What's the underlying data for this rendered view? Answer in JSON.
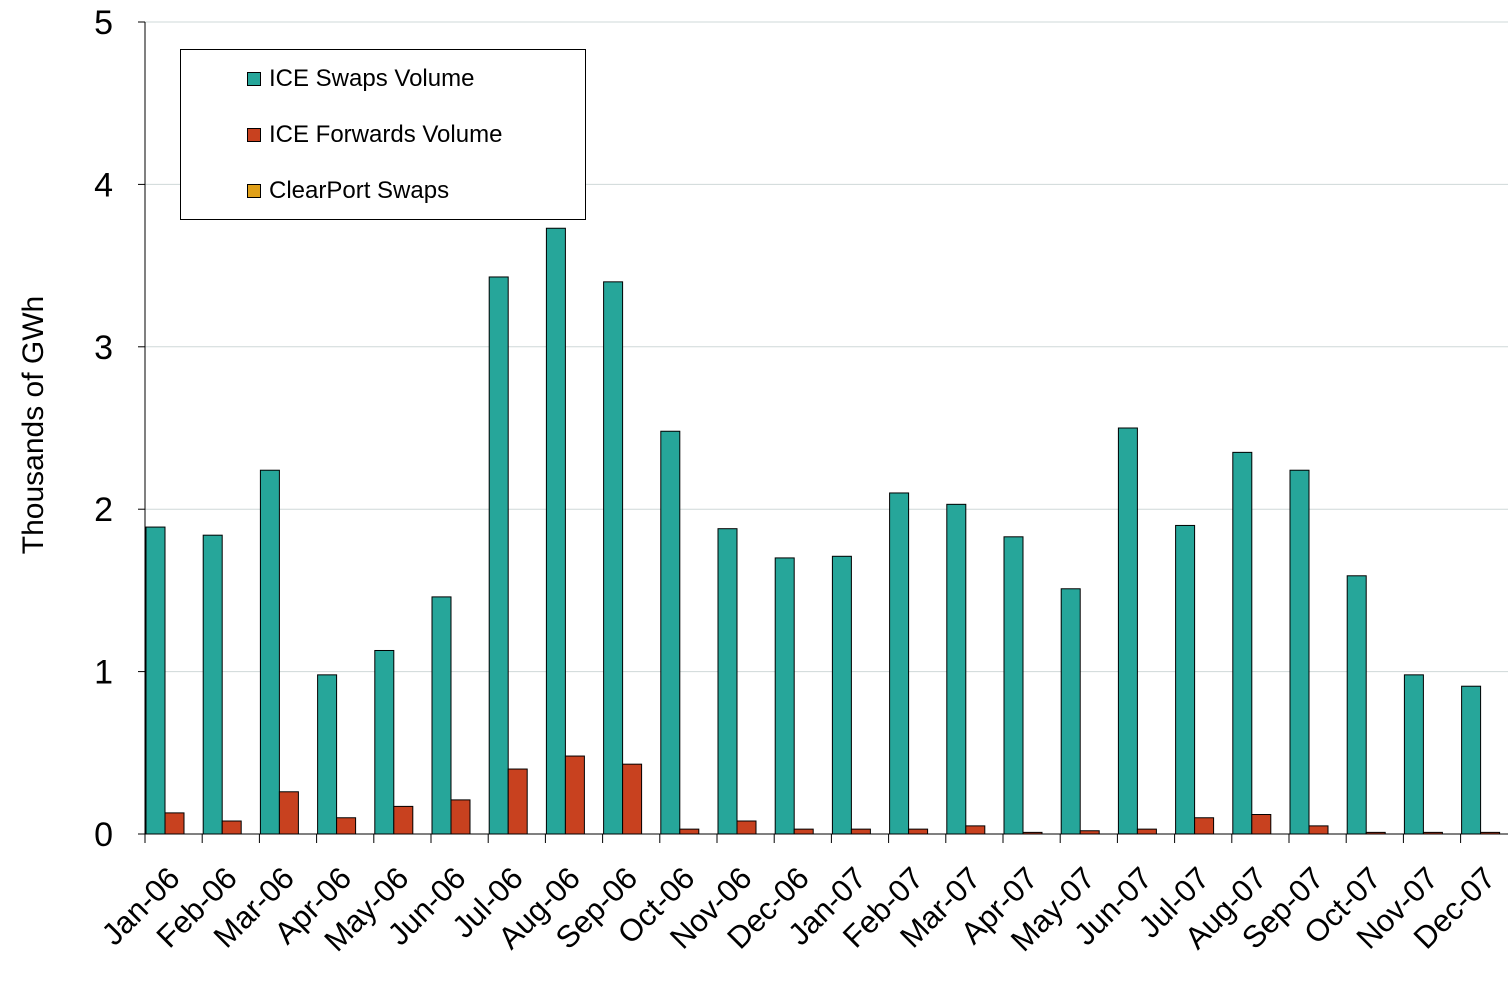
{
  "chart_data": {
    "type": "bar",
    "title": "",
    "xlabel": "",
    "ylabel": "Thousands of GWh",
    "ylim": [
      0,
      5
    ],
    "yticks": [
      "0",
      "1",
      "2",
      "3",
      "4",
      "5"
    ],
    "grid": true,
    "legend_position": "top-left",
    "categories": [
      "Jan-06",
      "Feb-06",
      "Mar-06",
      "Apr-06",
      "May-06",
      "Jun-06",
      "Jul-06",
      "Aug-06",
      "Sep-06",
      "Oct-06",
      "Nov-06",
      "Dec-06",
      "Jan-07",
      "Feb-07",
      "Mar-07",
      "Apr-07",
      "May-07",
      "Jun-07",
      "Jul-07",
      "Aug-07",
      "Sep-07",
      "Oct-07",
      "Nov-07",
      "Dec-07"
    ],
    "series": [
      {
        "name": "ICE Swaps Volume",
        "color": "#26a69a",
        "values": [
          1.89,
          1.84,
          2.24,
          0.98,
          1.13,
          1.46,
          3.43,
          3.73,
          3.4,
          2.48,
          1.88,
          1.7,
          1.71,
          2.1,
          2.03,
          1.83,
          1.51,
          2.5,
          1.9,
          2.35,
          2.24,
          1.59,
          0.98,
          0.91
        ]
      },
      {
        "name": "ICE Forwards Volume",
        "color": "#c8411f",
        "values": [
          0.13,
          0.08,
          0.26,
          0.1,
          0.17,
          0.21,
          0.4,
          0.48,
          0.43,
          0.03,
          0.08,
          0.03,
          0.03,
          0.03,
          0.05,
          0.01,
          0.02,
          0.03,
          0.1,
          0.12,
          0.05,
          0.01,
          0.01,
          0.01
        ]
      },
      {
        "name": "ClearPort Swaps",
        "color": "#e0a019",
        "values": [
          0,
          0,
          0,
          0,
          0,
          0,
          0,
          0,
          0,
          0,
          0,
          0,
          0,
          0,
          0,
          0,
          0,
          0,
          0,
          0,
          0,
          0,
          0,
          0
        ]
      }
    ]
  }
}
